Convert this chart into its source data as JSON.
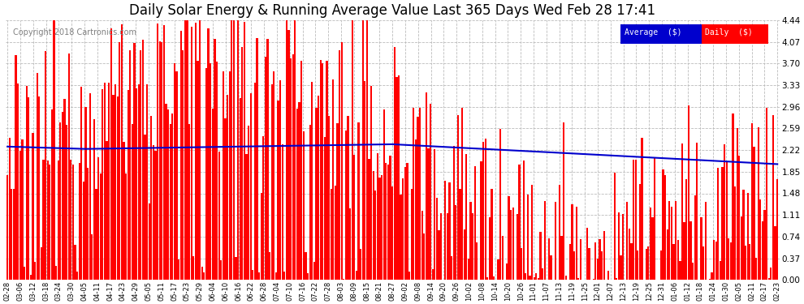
{
  "title": "Daily Solar Energy & Running Average Value Last 365 Days Wed Feb 28 17:41",
  "copyright": "Copyright 2018 Cartronics.com",
  "ylim": [
    0.0,
    4.44
  ],
  "yticks": [
    0.0,
    0.37,
    0.74,
    1.11,
    1.48,
    1.85,
    2.22,
    2.59,
    2.96,
    3.33,
    3.7,
    4.07,
    4.44
  ],
  "bar_color": "#FF0000",
  "avg_color": "#0000CD",
  "bg_color": "#FFFFFF",
  "plot_bg": "#FFFFFF",
  "title_fontsize": 12,
  "copyright_fontsize": 7,
  "legend_avg_label": "Average  ($)",
  "legend_daily_label": "Daily  ($)",
  "legend_avg_bg": "#0000CD",
  "legend_daily_bg": "#FF0000",
  "x_labels": [
    "02-28",
    "03-06",
    "03-12",
    "03-18",
    "03-24",
    "03-30",
    "04-05",
    "04-11",
    "04-17",
    "04-23",
    "04-29",
    "05-05",
    "05-11",
    "05-17",
    "05-23",
    "05-29",
    "06-04",
    "06-10",
    "06-16",
    "06-22",
    "06-28",
    "07-04",
    "07-10",
    "07-16",
    "07-22",
    "07-28",
    "08-03",
    "08-09",
    "08-15",
    "08-21",
    "08-27",
    "09-02",
    "09-08",
    "09-14",
    "09-20",
    "09-26",
    "10-02",
    "10-08",
    "10-14",
    "10-20",
    "10-26",
    "11-01",
    "11-07",
    "11-13",
    "11-19",
    "11-25",
    "12-01",
    "12-07",
    "12-13",
    "12-19",
    "12-25",
    "12-31",
    "01-06",
    "01-12",
    "01-18",
    "01-24",
    "01-30",
    "02-05",
    "02-11",
    "02-17",
    "02-23"
  ]
}
